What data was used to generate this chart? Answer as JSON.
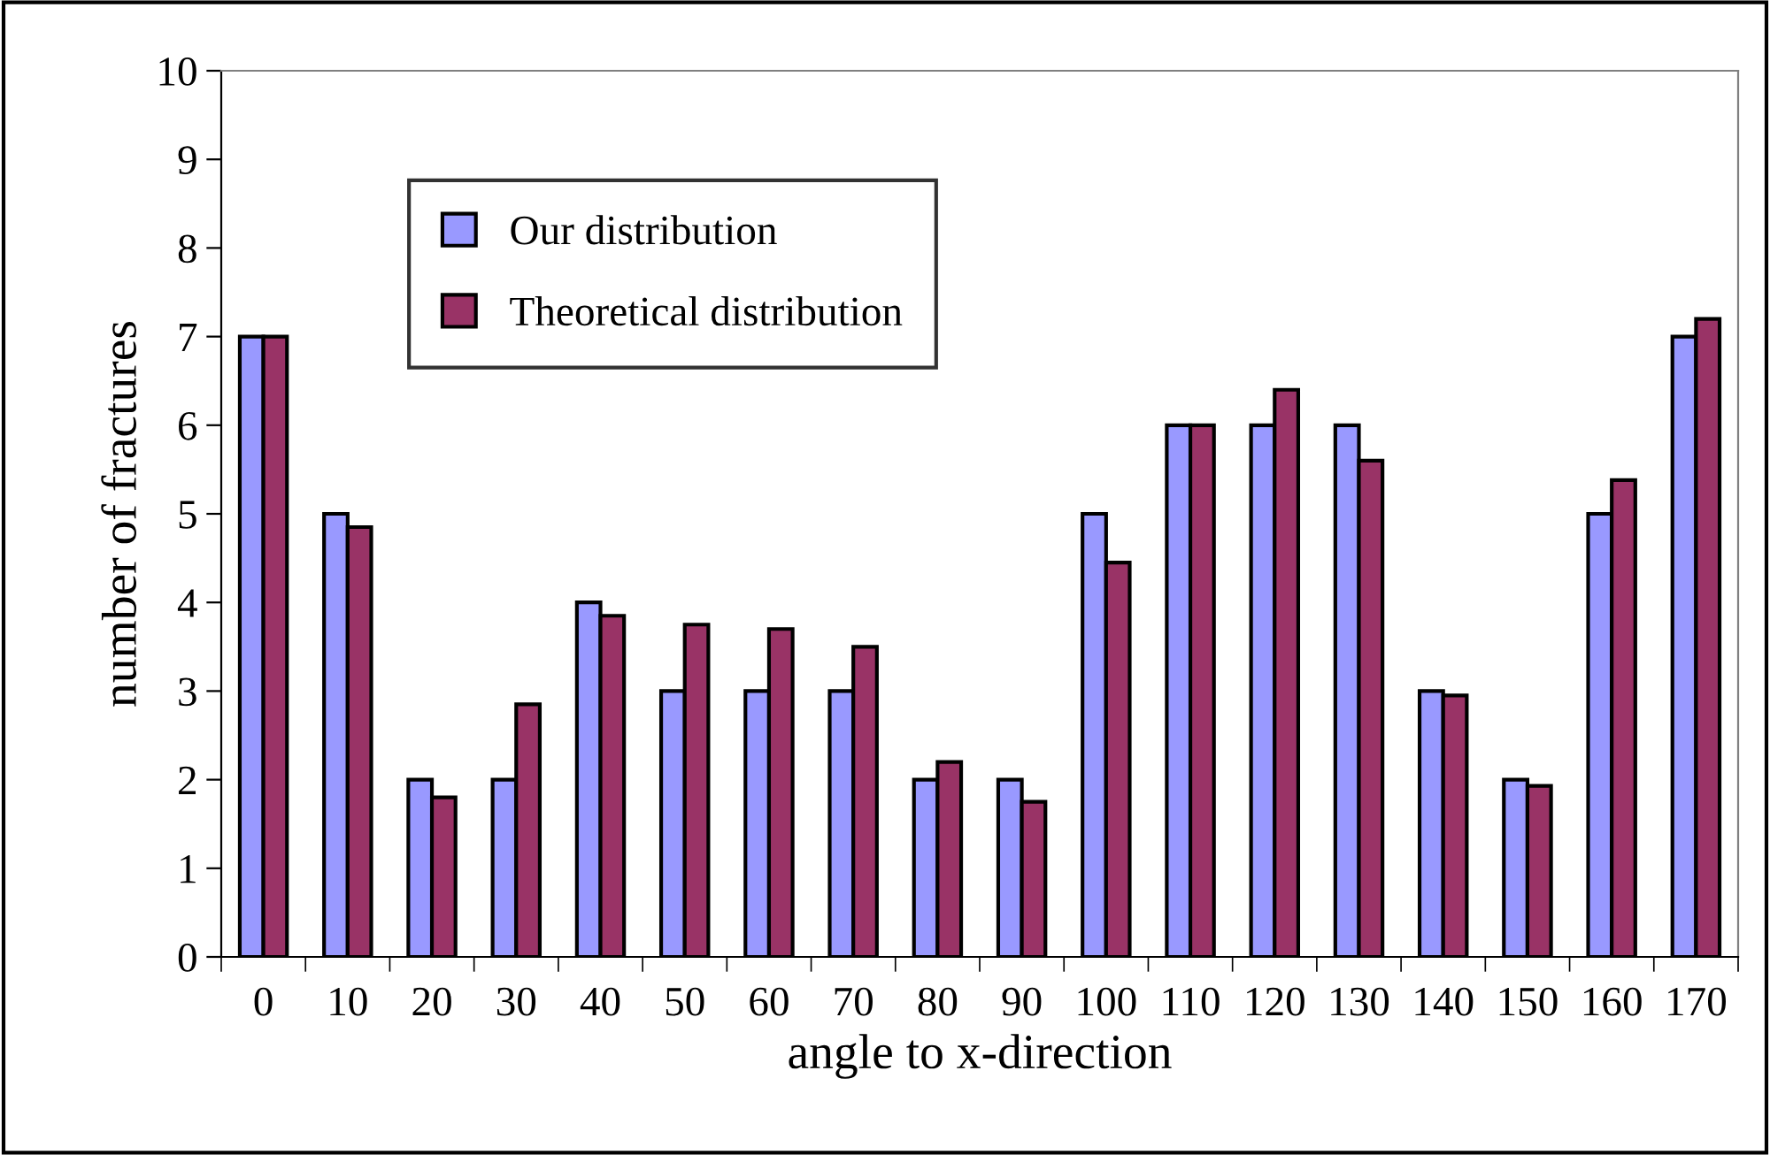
{
  "chart_data": {
    "type": "bar",
    "xlabel": "angle to x-direction",
    "ylabel": "number of fractures",
    "categories": [
      "0",
      "10",
      "20",
      "30",
      "40",
      "50",
      "60",
      "70",
      "80",
      "90",
      "100",
      "110",
      "120",
      "130",
      "140",
      "150",
      "160",
      "170"
    ],
    "series": [
      {
        "name": "Our distribution",
        "color": "#9999ff",
        "values": [
          7,
          5,
          2,
          2,
          4,
          3,
          3,
          3,
          2,
          2,
          5,
          6,
          6,
          6,
          3,
          2,
          5,
          7
        ]
      },
      {
        "name": "Theoretical distribution",
        "color": "#993366",
        "values": [
          7,
          4.85,
          1.8,
          2.85,
          3.85,
          3.75,
          3.7,
          3.5,
          2.2,
          1.75,
          4.45,
          6,
          6.4,
          5.6,
          2.95,
          1.93,
          5.38,
          7.2
        ]
      }
    ],
    "ylim": [
      0,
      10
    ],
    "yticks": [
      0,
      1,
      2,
      3,
      4,
      5,
      6,
      7,
      8,
      9,
      10
    ],
    "grid": false,
    "legend": "top left"
  }
}
